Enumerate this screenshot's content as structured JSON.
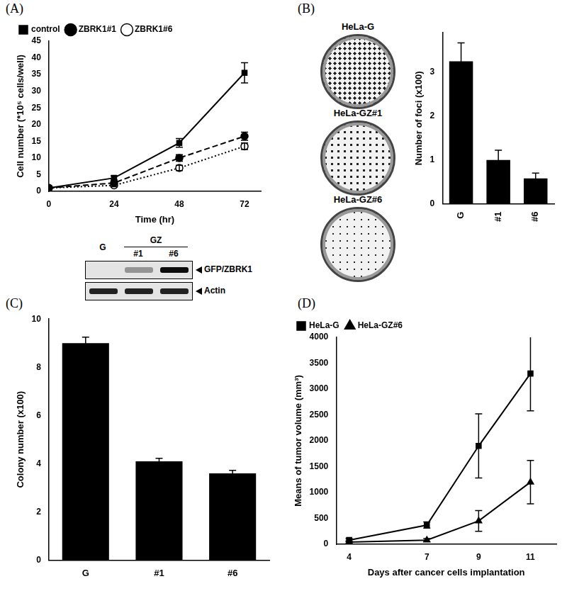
{
  "panels": [
    "(A)",
    "(B)",
    "(C)",
    "(D)"
  ],
  "blot": {
    "group": "GZ",
    "lanes": [
      "G",
      "#1",
      "#6"
    ],
    "bands": [
      "GFP/ZBRK1",
      "Actin"
    ]
  },
  "dishes": [
    "HeLa-G",
    "HeLa-GZ#1",
    "HeLa-GZ#6"
  ],
  "chart_data": [
    {
      "type": "line",
      "x_label": "Time (hr)",
      "y_label": "Cell number (*10⁵ cells/well)",
      "x": [
        0,
        24,
        48,
        72
      ],
      "xlim": [
        0,
        78
      ],
      "xticks": [
        0,
        24,
        48,
        72
      ],
      "ylim": [
        0,
        45
      ],
      "yticks": [
        0,
        5,
        10,
        15,
        20,
        25,
        30,
        35,
        40,
        45
      ],
      "grid": false,
      "legend": "upper left",
      "series": [
        {
          "name": "control",
          "color": "#000000",
          "marker": "square",
          "line_style": "solid",
          "values": [
            1,
            4,
            14.5,
            35.5
          ],
          "errors": [
            0.3,
            0.6,
            1.3,
            3
          ]
        },
        {
          "name": "ZBRK1#1",
          "color": "#000000",
          "marker": "circle",
          "line_style": "dashed",
          "values": [
            1,
            2.5,
            10,
            16.5
          ],
          "errors": [
            0.2,
            0.5,
            1,
            1.2
          ]
        },
        {
          "name": "ZBRK1#6",
          "color": "#000000",
          "marker": "open_circle",
          "line_style": "dotted",
          "values": [
            1,
            1.8,
            7,
            13.5
          ],
          "errors": [
            0.2,
            0.4,
            0.8,
            1
          ]
        }
      ]
    },
    {
      "type": "bar",
      "y_label": "Number of foci (x100)",
      "categories": [
        "G",
        "#1",
        "#6"
      ],
      "values": [
        3.25,
        1.0,
        0.58
      ],
      "errors": [
        0.42,
        0.22,
        0.12
      ],
      "color": "#000000",
      "ylim": [
        0,
        3.9
      ],
      "yticks": [
        0,
        1,
        2,
        3
      ],
      "grid": false
    },
    {
      "type": "bar",
      "y_label": "Colony number (x100)",
      "categories": [
        "G",
        "#1",
        "#6"
      ],
      "values": [
        9.0,
        4.1,
        3.6
      ],
      "errors": [
        0.25,
        0.12,
        0.12
      ],
      "color": "#000000",
      "ylim": [
        0,
        10
      ],
      "yticks": [
        0,
        2,
        4,
        6,
        8,
        10
      ],
      "grid": false
    },
    {
      "type": "line",
      "x_label": "Days after cancer cells implantation",
      "y_label": "Means of tumor volume (mm³)",
      "x": [
        4,
        7,
        9,
        11
      ],
      "xlim": [
        3.5,
        12
      ],
      "xticks": [
        4,
        7,
        9,
        11
      ],
      "ylim": [
        0,
        4000
      ],
      "yticks": [
        0,
        500,
        1000,
        1500,
        2000,
        2500,
        3000,
        3500,
        4000
      ],
      "grid": false,
      "legend": "upper left",
      "series": [
        {
          "name": "HeLa-G",
          "color": "#000000",
          "marker": "square",
          "line_style": "solid",
          "values": [
            80,
            370,
            1900,
            3300
          ],
          "errors": [
            30,
            60,
            620,
            720
          ]
        },
        {
          "name": "HeLa-GZ#6",
          "color": "#000000",
          "marker": "triangle",
          "line_style": "solid",
          "values": [
            40,
            80,
            450,
            1200
          ],
          "errors": [
            20,
            30,
            200,
            420
          ]
        }
      ]
    }
  ]
}
